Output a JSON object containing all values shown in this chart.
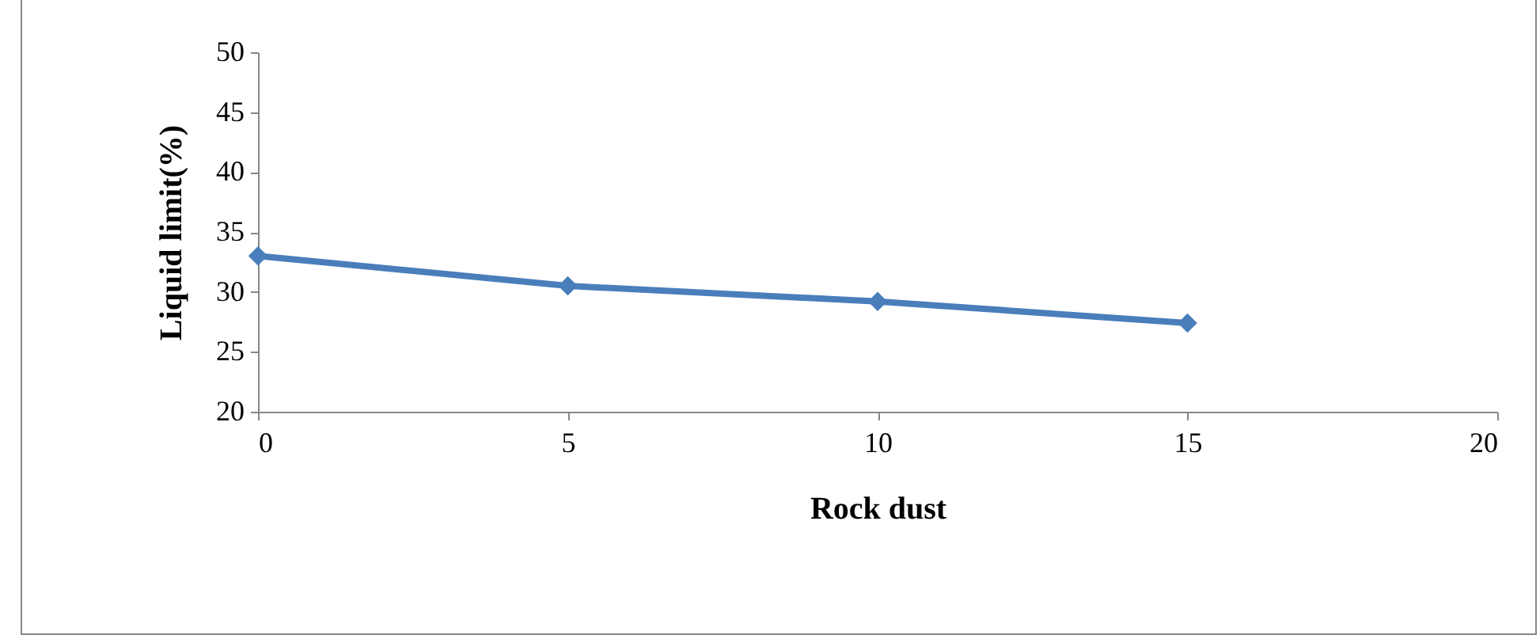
{
  "chart_data": {
    "type": "line",
    "xlabel": "Rock dust",
    "ylabel": "Liquid limit(%)",
    "x": [
      0,
      5,
      10,
      15
    ],
    "series": [
      {
        "color": "#4a7ebb",
        "values": [
          33,
          30.5,
          29.2,
          27.4
        ]
      }
    ],
    "xlim": [
      0,
      20
    ],
    "xticks": [
      0,
      5,
      10,
      15,
      20
    ],
    "ylim": [
      20,
      50
    ],
    "yticks": [
      20,
      25,
      30,
      35,
      40,
      45,
      50
    ],
    "grid": false,
    "marker": "diamond",
    "line_style": "solid"
  }
}
